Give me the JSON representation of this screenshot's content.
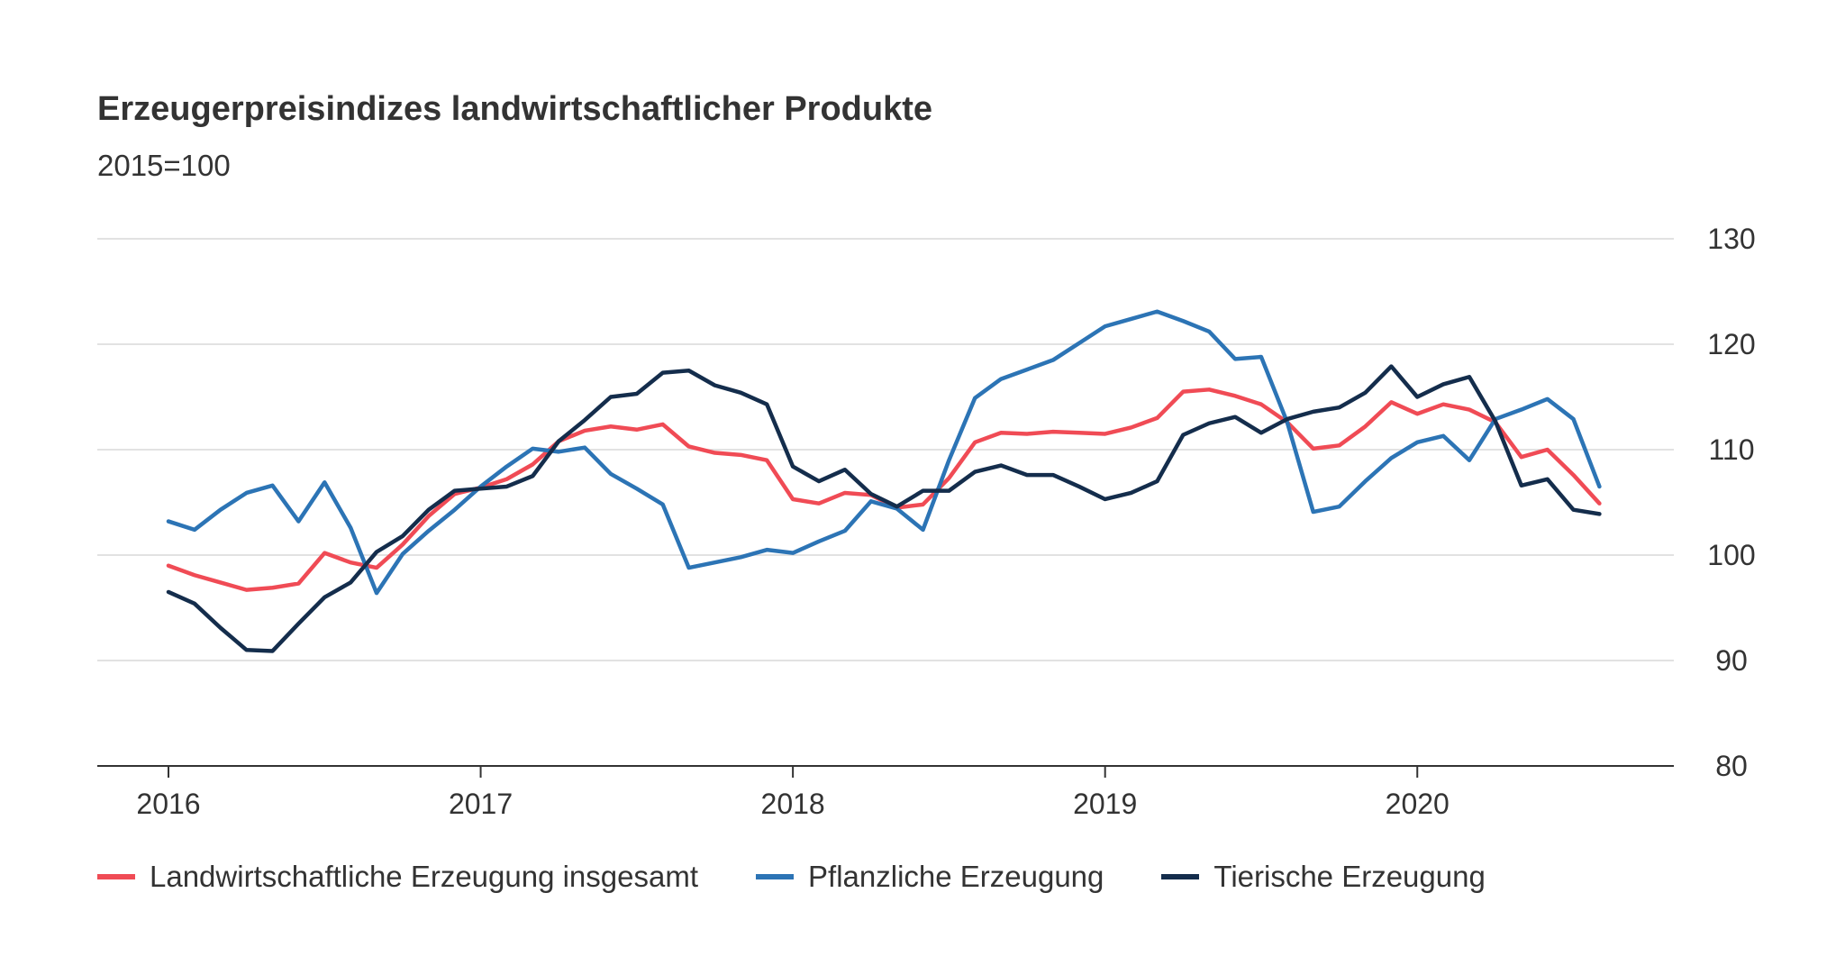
{
  "chart_data": {
    "type": "line",
    "title": "Erzeugerpreisindizes landwirtschaftlicher Produkte",
    "subtitle": "2015=100",
    "xlabel": "",
    "ylabel": "",
    "ylim": [
      80,
      130
    ],
    "y_ticks": [
      "80",
      "90",
      "100",
      "110",
      "120",
      "130"
    ],
    "x_ticks": [
      "2016",
      "2017",
      "2018",
      "2019",
      "2020"
    ],
    "x_range": [
      "2016-01",
      "2020-08"
    ],
    "grid": true,
    "legend_position": "bottom",
    "series": [
      {
        "name": "Landwirtschaftliche Erzeugung insgesamt",
        "color": "#f04b55",
        "values": [
          99.0,
          98.1,
          97.4,
          96.7,
          96.9,
          97.3,
          100.2,
          99.3,
          98.8,
          101.0,
          103.7,
          105.8,
          106.4,
          107.2,
          108.6,
          110.8,
          111.8,
          112.2,
          111.9,
          112.4,
          110.3,
          109.7,
          109.5,
          109.0,
          105.3,
          104.9,
          105.9,
          105.7,
          104.5,
          104.8,
          107.3,
          110.7,
          111.6,
          111.5,
          111.7,
          111.6,
          111.5,
          112.1,
          113.0,
          115.5,
          115.7,
          115.1,
          114.3,
          112.6,
          110.1,
          110.4,
          112.2,
          114.5,
          113.4,
          114.3,
          113.8,
          112.6,
          109.3,
          110.0,
          107.6,
          104.9
        ]
      },
      {
        "name": "Pflanzliche Erzeugung",
        "color": "#2c74b5",
        "values": [
          103.2,
          102.4,
          104.3,
          105.9,
          106.6,
          103.2,
          106.9,
          102.6,
          96.4,
          100.1,
          102.3,
          104.3,
          106.5,
          108.4,
          110.1,
          109.8,
          110.2,
          107.7,
          106.3,
          104.8,
          98.8,
          99.3,
          99.8,
          100.5,
          100.2,
          101.3,
          102.3,
          105.1,
          104.4,
          102.4,
          109.0,
          114.9,
          116.7,
          117.6,
          118.5,
          120.1,
          121.7,
          122.4,
          123.1,
          122.2,
          121.2,
          118.6,
          118.8,
          112.6,
          104.1,
          104.6,
          107.0,
          109.2,
          110.7,
          111.3,
          109.0,
          112.9,
          113.8,
          114.8,
          112.9,
          106.5
        ]
      },
      {
        "name": "Tierische Erzeugung",
        "color": "#142d4c",
        "values": [
          96.5,
          95.4,
          93.1,
          91.0,
          90.9,
          93.5,
          96.0,
          97.4,
          100.3,
          101.8,
          104.3,
          106.1,
          106.3,
          106.5,
          107.5,
          110.8,
          112.8,
          115.0,
          115.3,
          117.3,
          117.5,
          116.1,
          115.4,
          114.3,
          108.4,
          107.0,
          108.1,
          105.8,
          104.6,
          106.1,
          106.1,
          107.9,
          108.5,
          107.6,
          107.6,
          106.5,
          105.3,
          105.9,
          107.0,
          111.4,
          112.5,
          113.1,
          111.6,
          112.9,
          113.6,
          114.0,
          115.4,
          117.9,
          115.0,
          116.2,
          116.9,
          112.7,
          106.6,
          107.2,
          104.3,
          103.9
        ]
      }
    ]
  }
}
